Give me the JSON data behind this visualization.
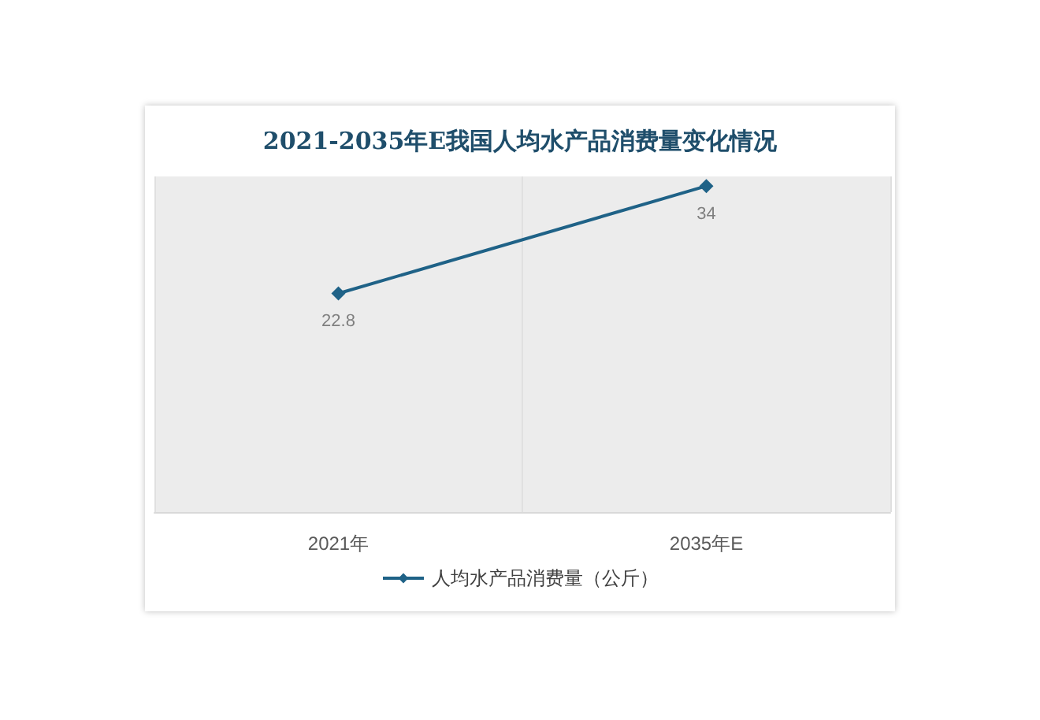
{
  "chart_data": {
    "type": "line",
    "title": "2021-2035年E我国人均水产品消费量变化情况",
    "categories": [
      "2021年",
      "2035年E"
    ],
    "series": [
      {
        "name": "人均水产品消费量（公斤）",
        "color": "#1f6287",
        "values": [
          22.8,
          34
        ]
      }
    ],
    "data_labels": true,
    "marker": "diamond",
    "grid": "x",
    "legend": "bottom"
  }
}
